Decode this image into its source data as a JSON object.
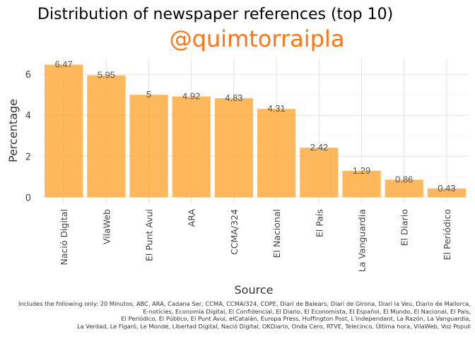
{
  "title": "Distribution of newspaper references (top 10)",
  "subtitle": "@quimtorraipla",
  "caption_lines": [
    "Includes the following only: 20 Minutos, ABC, ARA, Cadana Ser, CCMA, CCMA/324, COPE, Diari de Balears, Diari de Girona, Diari la Veu, Diario de Mallorca,",
    "E-notícies, Economia Digital, El Confidencial, El Diario, El Economista, El Español, El Mundo, El Nacional, El País,",
    "El Periódico, El Público, El Punt Avui, elCatalán, Europa Press, Huffington Post, L'independant, La Razón, La Vanguardia,",
    "La Verdad, Le Figaró, Le Monde, Libertad Digital, Nació Digital, OKDiario, Onda Cero, RTVE, Telecinco, Última hora, VilaWeb, Voz Populi"
  ],
  "colors": {
    "bar": "#ffa733",
    "subtitle": "#ff7518",
    "grid": "#e3e3e3"
  },
  "chart_data": {
    "type": "bar",
    "categories": [
      "Nació Digital",
      "VilaWeb",
      "El Punt Avui",
      "ARA",
      "CCMA/324",
      "El Nacional",
      "El País",
      "La Vanguardia",
      "El Diario",
      "El Periódico"
    ],
    "values": [
      6.47,
      5.95,
      5,
      4.92,
      4.83,
      4.31,
      2.42,
      1.29,
      0.86,
      0.43
    ],
    "data_labels": [
      "6.47",
      "5.95",
      "5",
      "4.92",
      "4.83",
      "4.31",
      "2.42",
      "1.29",
      "0.86",
      "0.43"
    ],
    "title": "Distribution of newspaper references (top 10)",
    "xlabel": "Source",
    "ylabel": "Percentage",
    "ylim": [
      -0.3,
      6.8
    ],
    "yticks": [
      0,
      2,
      4,
      6
    ],
    "grid": true
  }
}
